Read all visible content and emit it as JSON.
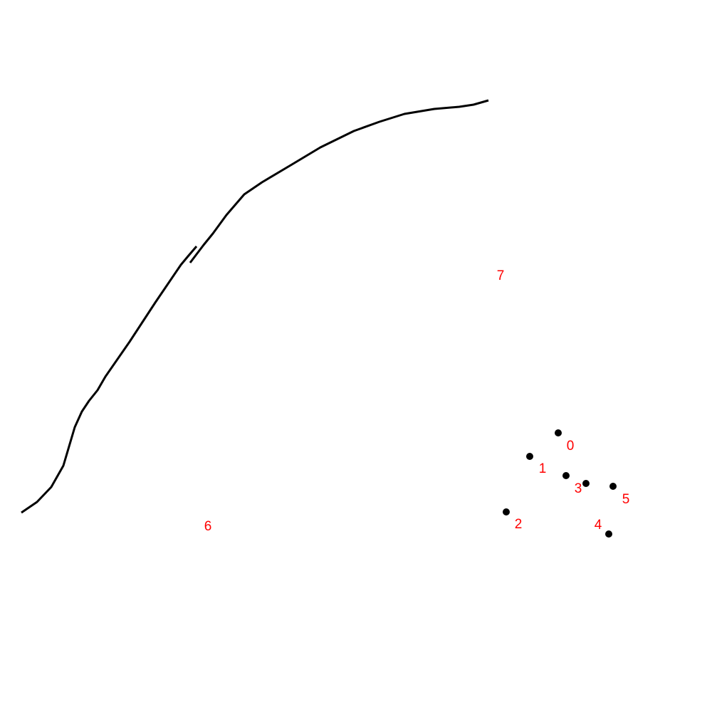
{
  "colors": {
    "background": "#ffffff",
    "stroke": "#000000",
    "dot": "#000000",
    "label": "#ff0000"
  },
  "points": [
    {
      "id": "0",
      "label": "0"
    },
    {
      "id": "1",
      "label": "1"
    },
    {
      "id": "2",
      "label": "2"
    },
    {
      "id": "3",
      "label": "3"
    },
    {
      "id": "4",
      "label": "4"
    },
    {
      "id": "5",
      "label": "5"
    }
  ],
  "floating_labels": [
    {
      "id": "6",
      "label": "6"
    },
    {
      "id": "7",
      "label": "7"
    }
  ]
}
